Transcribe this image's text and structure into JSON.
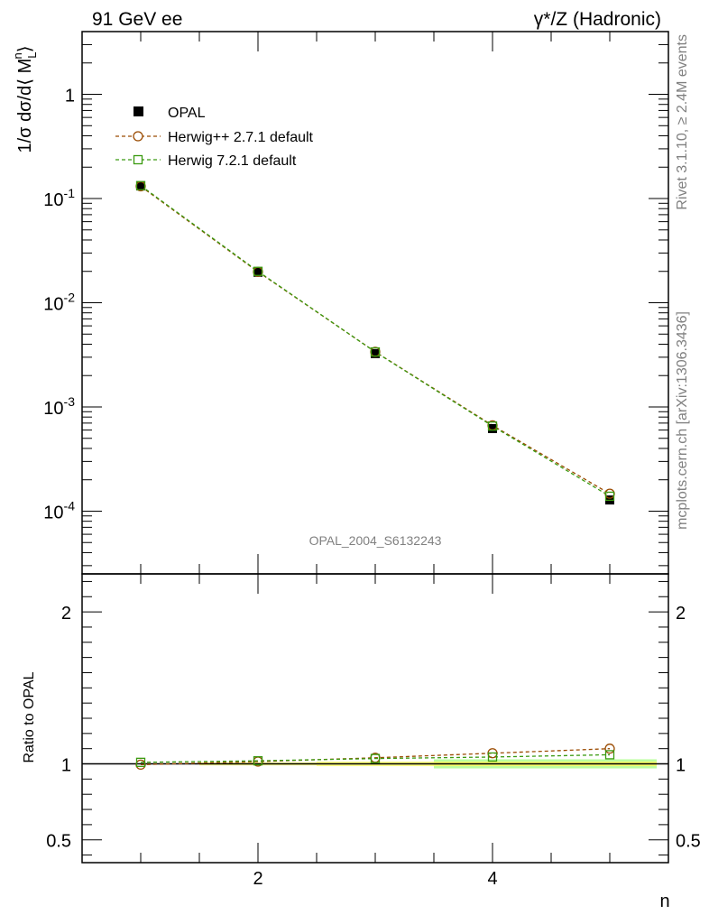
{
  "header": {
    "left": "91 GeV ee",
    "right": "γ*/Z (Hadronic)"
  },
  "side_text": {
    "rivet": "Rivet 3.1.10, ≥ 2.4M events",
    "mcplots": "mcplots.cern.ch [arXiv:1306.3436]"
  },
  "watermark": "OPAL_2004_S6132243",
  "colors": {
    "opal": "#000000",
    "herwigpp": "#9a4a00",
    "herwig7": "#3a9a10",
    "band_inner": "#ffff66",
    "band_outer": "#aaff88"
  },
  "chart_data": [
    {
      "type": "scatter",
      "ylabel": "1/σ dσ/d⟨ M_L^n⟩",
      "xlim": [
        0.5,
        5.5
      ],
      "ylim": [
        2.5e-05,
        4
      ],
      "yscale": "log",
      "x": [
        1,
        2,
        3,
        4,
        5
      ],
      "ytick_labels": [
        "1",
        "10^-1",
        "10^-2",
        "10^-3",
        "10^-4"
      ],
      "legend_placement": "top-left",
      "series": [
        {
          "name": "OPAL",
          "values": [
            0.132,
            0.0196,
            0.00325,
            0.00062,
            0.000128
          ]
        },
        {
          "name": "Herwig++ 2.7.1 default",
          "values": [
            0.131,
            0.0198,
            0.00338,
            0.000665,
            0.000147
          ]
        },
        {
          "name": "Herwig 7.2.1 default",
          "values": [
            0.133,
            0.02,
            0.00337,
            0.000655,
            0.000139
          ]
        }
      ]
    },
    {
      "type": "line",
      "ylabel": "Ratio to OPAL",
      "xlabel": "n",
      "xlim": [
        0.5,
        5.5
      ],
      "ylim": [
        0.35,
        2.25
      ],
      "xtick_labels": [
        "2",
        "4"
      ],
      "ytick_labels": [
        "0.5",
        "1",
        "2"
      ],
      "x": [
        1,
        2,
        3,
        4,
        5
      ],
      "series": [
        {
          "name": "Herwig++ 2.7.1 default",
          "values": [
            0.995,
            1.015,
            1.04,
            1.07,
            1.1
          ]
        },
        {
          "name": "Herwig 7.2.1 default",
          "values": [
            1.01,
            1.02,
            1.035,
            1.045,
            1.06
          ]
        }
      ]
    }
  ]
}
